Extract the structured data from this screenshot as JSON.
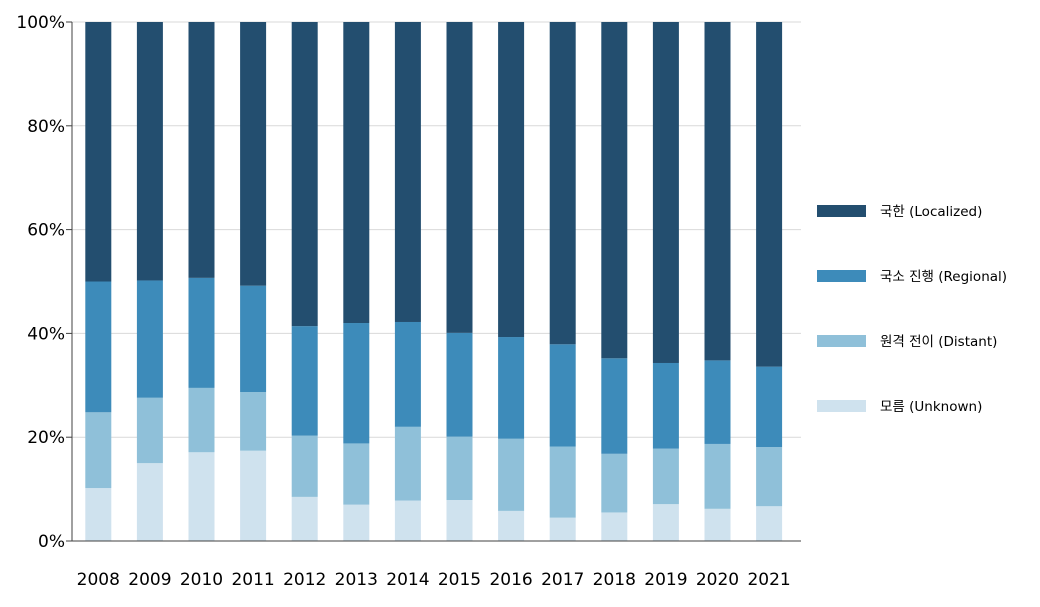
{
  "chart_data": {
    "type": "bar",
    "stacked": true,
    "normalized": true,
    "categories": [
      "2008",
      "2009",
      "2010",
      "2011",
      "2012",
      "2013",
      "2014",
      "2015",
      "2016",
      "2017",
      "2018",
      "2019",
      "2020",
      "2021"
    ],
    "series": [
      {
        "name": "모름 (Unknown)",
        "color": "#cfe2ee",
        "values": [
          10.2,
          15.0,
          17.1,
          17.4,
          8.5,
          7.0,
          7.8,
          7.9,
          5.8,
          4.5,
          5.5,
          7.1,
          6.2,
          6.7
        ]
      },
      {
        "name": "원격 전이 (Distant)",
        "color": "#8fc0d9",
        "values": [
          14.6,
          12.6,
          12.4,
          11.3,
          11.8,
          11.8,
          14.2,
          12.2,
          13.9,
          13.7,
          11.3,
          10.7,
          12.5,
          11.4
        ]
      },
      {
        "name": "국소 진행 (Regional)",
        "color": "#3d8bba",
        "values": [
          25.2,
          22.6,
          21.2,
          20.5,
          21.1,
          23.2,
          20.2,
          20.0,
          19.6,
          19.7,
          18.4,
          16.5,
          16.1,
          15.5
        ]
      },
      {
        "name": "국한 (Localized)",
        "color": "#234e6f",
        "values": [
          50.0,
          49.8,
          49.3,
          50.8,
          58.6,
          58.0,
          57.8,
          59.9,
          60.7,
          62.1,
          64.8,
          65.7,
          65.2,
          66.4
        ]
      }
    ],
    "ylim": [
      0,
      100
    ],
    "yticks": [
      "0%",
      "20%",
      "40%",
      "60%",
      "80%",
      "100%"
    ],
    "ytick_values": [
      0,
      20,
      40,
      60,
      80,
      100
    ],
    "grid": true,
    "legend_position": "right",
    "legend_order": [
      "국한 (Localized)",
      "국소 진행 (Regional)",
      "원격 전이 (Distant)",
      "모름 (Unknown)"
    ]
  }
}
